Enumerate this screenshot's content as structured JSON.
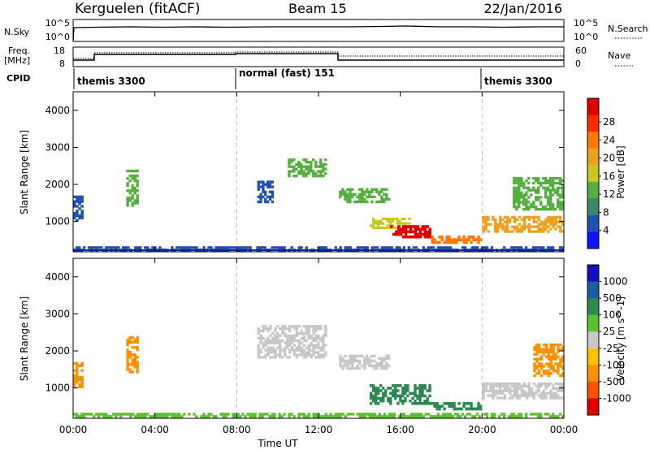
{
  "header": {
    "station": "Kerguelen (fitACF)",
    "beam": "Beam 15",
    "date": "22/Jan/2016"
  },
  "top_panels": {
    "nsky_label": "N.Sky",
    "nsky_ticks": [
      "10^5",
      "10^0"
    ],
    "nsearch_label": "N.Search",
    "nsearch_ticks": [
      "10^5",
      "10^0"
    ],
    "freq_label": "Freq.",
    "freq_unit": "[MHz]",
    "freq_ticks": [
      "18",
      "8"
    ],
    "nave_label": "Nave",
    "nave_ticks": [
      "60",
      "0"
    ],
    "cpid_label": "CPID",
    "cpid_segments": [
      {
        "label": "themis 3300",
        "start": 0,
        "end": 8
      },
      {
        "label": "normal (fast) 151",
        "start": 8,
        "end": 20
      },
      {
        "label": "themis 3300",
        "start": 20,
        "end": 24
      }
    ]
  },
  "chart_data": [
    {
      "type": "heatmap",
      "title": "",
      "xlabel": "Time UT",
      "ylabel": "Slant Range [km]",
      "xlim": [
        0,
        24
      ],
      "ylim": [
        180,
        4500
      ],
      "xticks": [
        "00:00",
        "04:00",
        "08:00",
        "12:00",
        "16:00",
        "20:00",
        "00:00"
      ],
      "yticks": [
        "1000",
        "2000",
        "3000",
        "4000"
      ],
      "colorbar": {
        "label": "Power [dB]",
        "ticks": [
          "4",
          "8",
          "12",
          "16",
          "20",
          "24",
          "28"
        ],
        "colors": [
          "#1010ff",
          "#2050b0",
          "#3a8a6a",
          "#55b040",
          "#c8c820",
          "#f0a020",
          "#ff7a00",
          "#ff2a00",
          "#e00000"
        ]
      },
      "series": [
        {
          "t0": 0.0,
          "t1": 24.0,
          "r0": 200,
          "r1": 330,
          "value": 8
        },
        {
          "t0": 0.0,
          "t1": 0.5,
          "r0": 1000,
          "r1": 1700,
          "value": 8
        },
        {
          "t0": 2.6,
          "t1": 3.2,
          "r0": 1400,
          "r1": 2400,
          "value": 12
        },
        {
          "t0": 9.0,
          "t1": 9.8,
          "r0": 1500,
          "r1": 2100,
          "value": 8
        },
        {
          "t0": 10.5,
          "t1": 12.4,
          "r0": 2200,
          "r1": 2700,
          "value": 12
        },
        {
          "t0": 13.0,
          "t1": 15.5,
          "r0": 1500,
          "r1": 1900,
          "value": 14
        },
        {
          "t0": 14.5,
          "t1": 16.5,
          "r0": 800,
          "r1": 1100,
          "value": 16
        },
        {
          "t0": 15.5,
          "t1": 17.5,
          "r0": 550,
          "r1": 900,
          "value": 28
        },
        {
          "t0": 17.5,
          "t1": 20.0,
          "r0": 400,
          "r1": 620,
          "value": 24
        },
        {
          "t0": 20.0,
          "t1": 24.0,
          "r0": 700,
          "r1": 1150,
          "value": 18
        },
        {
          "t0": 21.5,
          "t1": 24.0,
          "r0": 1300,
          "r1": 2200,
          "value": 14
        }
      ]
    },
    {
      "type": "heatmap",
      "title": "",
      "xlabel": "Time UT",
      "ylabel": "Slant Range [km]",
      "xlim": [
        0,
        24
      ],
      "ylim": [
        180,
        4500
      ],
      "xticks": [
        "00:00",
        "04:00",
        "08:00",
        "12:00",
        "16:00",
        "20:00",
        "00:00"
      ],
      "yticks": [
        "1000",
        "2000",
        "3000",
        "4000"
      ],
      "colorbar": {
        "label": "Velocity [m s^-1]",
        "ticks": [
          "1000",
          "500",
          "100",
          "25",
          "-25",
          "-100",
          "-500",
          "-1000"
        ],
        "colors": [
          "#1010c0",
          "#1a60a0",
          "#2a8a50",
          "#5cc030",
          "#c8c8c8",
          "#ffc000",
          "#ff9000",
          "#ff5000",
          "#e00000"
        ]
      },
      "series": [
        {
          "t0": 0.0,
          "t1": 24.0,
          "r0": 200,
          "r1": 330,
          "value": 80
        },
        {
          "t0": 0.0,
          "t1": 0.5,
          "r0": 1000,
          "r1": 1700,
          "value": -200
        },
        {
          "t0": 2.6,
          "t1": 3.2,
          "r0": 1400,
          "r1": 2400,
          "value": -400
        },
        {
          "t0": 9.0,
          "t1": 12.4,
          "r0": 1800,
          "r1": 2700,
          "value": 0
        },
        {
          "t0": 13.0,
          "t1": 15.5,
          "r0": 1500,
          "r1": 1900,
          "value": 0
        },
        {
          "t0": 14.5,
          "t1": 17.5,
          "r0": 550,
          "r1": 1100,
          "value": 200
        },
        {
          "t0": 17.5,
          "t1": 20.0,
          "r0": 400,
          "r1": 620,
          "value": 150
        },
        {
          "t0": 20.0,
          "t1": 24.0,
          "r0": 700,
          "r1": 1150,
          "value": 0
        },
        {
          "t0": 22.5,
          "t1": 24.0,
          "r0": 1300,
          "r1": 2200,
          "value": -400
        }
      ]
    }
  ]
}
